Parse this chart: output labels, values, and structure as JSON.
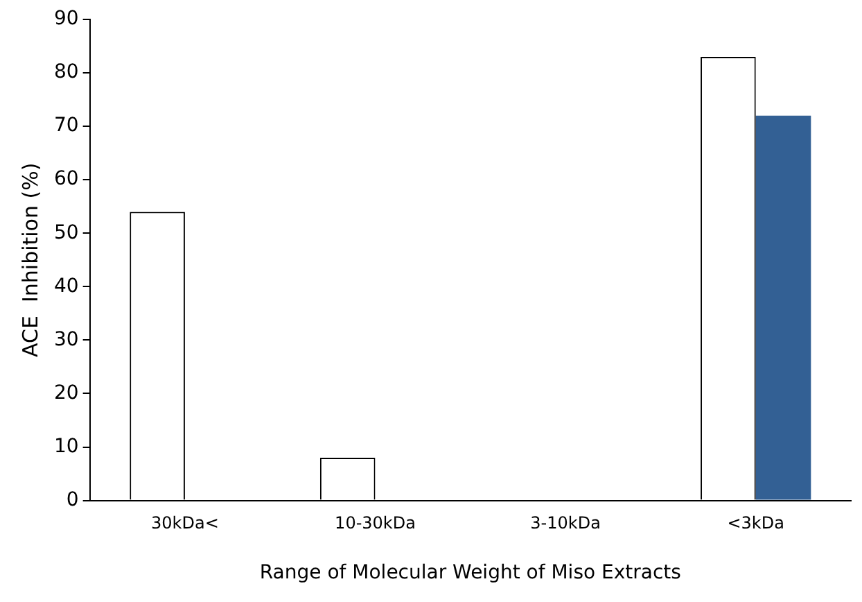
{
  "chart_data": {
    "type": "bar",
    "xlabel": "Range of Molecular Weight of Miso Extracts",
    "ylabel": "ACE  Inhibition (%)",
    "categories": [
      "30kDa<",
      "10-30kDa",
      "3-10kDa",
      "<3kDa"
    ],
    "series": [
      {
        "color": "#ffffff",
        "values": [
          54,
          8,
          null,
          83
        ]
      },
      {
        "color": "#336094",
        "values": [
          null,
          null,
          null,
          72
        ]
      }
    ],
    "ylim": [
      0,
      90
    ],
    "yticks": [
      0,
      10,
      20,
      30,
      40,
      50,
      60,
      70,
      80,
      90
    ],
    "grid": false,
    "legend": false
  }
}
